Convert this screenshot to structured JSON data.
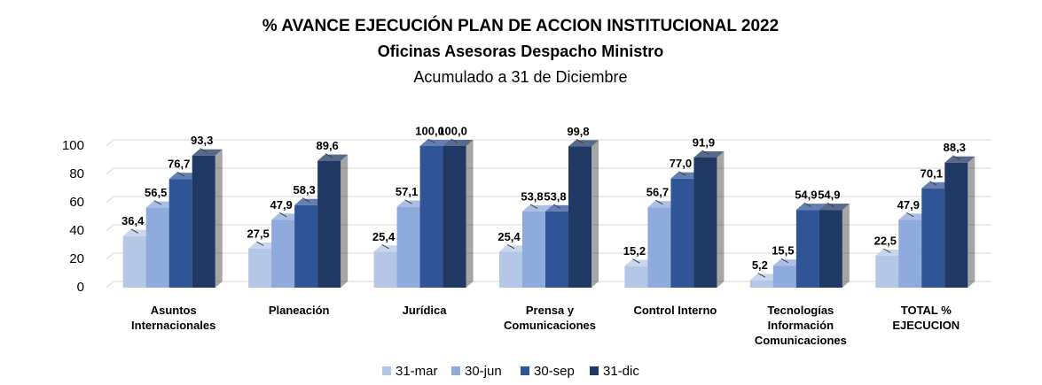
{
  "chart_data": {
    "type": "bar3d",
    "title": "% AVANCE EJECUCIÓN PLAN DE ACCION INSTITUCIONAL 2022",
    "subtitle": "Oficinas Asesoras Despacho Ministro",
    "subtitle2": "Acumulado a 31 de Diciembre",
    "categories": [
      "Asuntos Internacionales",
      "Planeación",
      "Jurídica",
      "Prensa y Comunicaciones",
      "Control Interno",
      "Tecnologías Información Comunicaciones",
      "TOTAL % EJECUCION"
    ],
    "series": [
      {
        "name": "31-mar",
        "color": "#b4c7e7",
        "values": [
          36.4,
          27.5,
          25.4,
          25.4,
          15.2,
          5.2,
          22.5
        ],
        "value_labels": [
          "36,4",
          "27,5",
          "25,4",
          "25,4",
          "15,2",
          "5,2",
          "22,5"
        ]
      },
      {
        "name": "30-jun",
        "color": "#8faadc",
        "values": [
          56.5,
          47.9,
          57.1,
          53.8,
          56.7,
          15.5,
          47.9
        ],
        "value_labels": [
          "56,5",
          "47,9",
          "57,1",
          "53,8",
          "56,7",
          "15,5",
          "47,9"
        ]
      },
      {
        "name": "30-sep",
        "color": "#2f5597",
        "values": [
          76.7,
          58.3,
          100.0,
          53.8,
          77.0,
          54.9,
          70.1
        ],
        "value_labels": [
          "76,7",
          "58,3",
          "100,0",
          "53,8",
          "77,0",
          "54,9",
          "70,1"
        ]
      },
      {
        "name": "31-dic",
        "color": "#1f3864",
        "values": [
          93.3,
          89.6,
          100.0,
          99.8,
          91.9,
          54.9,
          88.3
        ],
        "value_labels": [
          "93,3",
          "89,6",
          "100,0",
          "99,8",
          "91,9",
          "54,9",
          "88,3"
        ]
      }
    ],
    "ylim": [
      0,
      100
    ],
    "yticks": [
      0,
      20,
      40,
      60,
      80,
      100
    ],
    "grid": true,
    "legend": "bottom"
  }
}
